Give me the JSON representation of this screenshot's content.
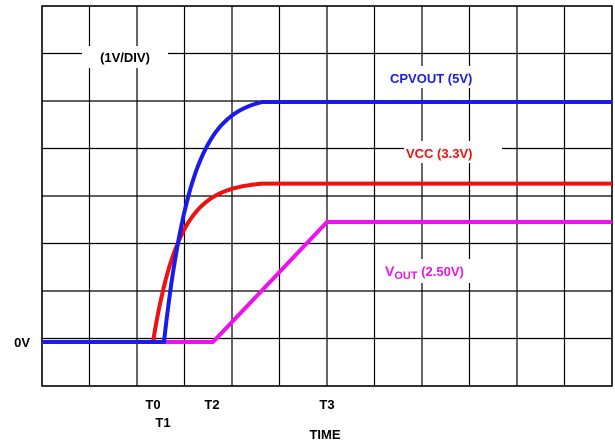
{
  "chart_data": {
    "type": "line",
    "title": "",
    "scale_label": "(1V/DIV)",
    "xlabel": "TIME",
    "ylabel": "",
    "y_unit": "V",
    "y_per_division": 1,
    "grid": true,
    "baseline_label": "0V",
    "x_ticks": [
      {
        "label": "T0",
        "time": "T0"
      },
      {
        "label": "T1",
        "time": "T1"
      },
      {
        "label": "T2",
        "time": "T2"
      },
      {
        "label": "T3",
        "time": "T3"
      }
    ],
    "series": [
      {
        "name": "CPVOUT (5V)",
        "label_main": "CPVOUT (5V)",
        "label_sub": "",
        "label_suffix": "",
        "color": "#1a1aee",
        "final_value": 5,
        "shape": "fast-exponential-rise",
        "rise_start": "T1",
        "settle_time": "between T2 and T3"
      },
      {
        "name": "VCC (3.3V)",
        "label_main": "VCC (3.3V)",
        "label_sub": "",
        "label_suffix": "",
        "color": "#ee1111",
        "final_value": 3.3,
        "shape": "exponential-rise",
        "rise_start": "T0",
        "settle_time": "between T2 and T3"
      },
      {
        "name": "VOUT (2.50V)",
        "label_main": "V",
        "label_sub": "OUT",
        "label_suffix": " (2.50V)",
        "color": "#ee11ee",
        "final_value": 2.5,
        "shape": "linear-ramp",
        "rise_start": "T2",
        "settle_time": "T3"
      }
    ]
  }
}
